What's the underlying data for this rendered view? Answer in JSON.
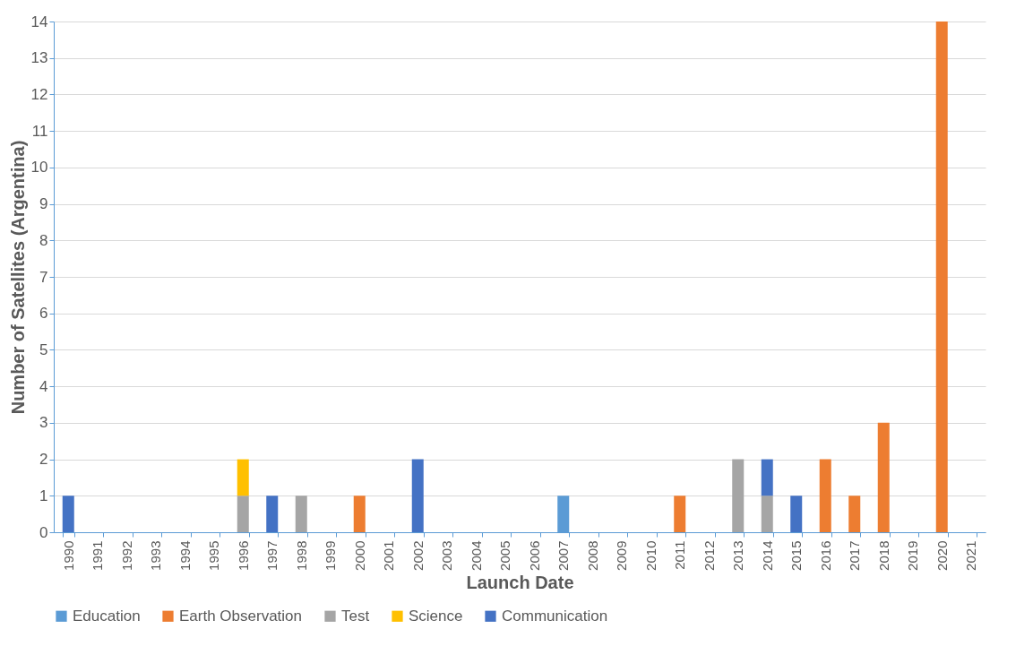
{
  "chart_data": {
    "type": "bar",
    "stacked": true,
    "xlabel": "Launch Date",
    "ylabel": "Number of Satellites (Argentina)",
    "categories": [
      "1990",
      "1991",
      "1992",
      "1993",
      "1994",
      "1995",
      "1996",
      "1997",
      "1998",
      "1999",
      "2000",
      "2001",
      "2002",
      "2003",
      "2004",
      "2005",
      "2006",
      "2007",
      "2008",
      "2009",
      "2010",
      "2011",
      "2012",
      "2013",
      "2014",
      "2015",
      "2016",
      "2017",
      "2018",
      "2019",
      "2020",
      "2021"
    ],
    "series": [
      {
        "name": "Education",
        "color": "#5b9bd5",
        "values": [
          null,
          null,
          null,
          null,
          null,
          null,
          null,
          null,
          null,
          null,
          null,
          null,
          null,
          null,
          null,
          null,
          null,
          1,
          null,
          null,
          null,
          null,
          null,
          null,
          null,
          null,
          null,
          null,
          null,
          null,
          null,
          null
        ]
      },
      {
        "name": "Earth Observation",
        "color": "#ed7d31",
        "values": [
          null,
          null,
          null,
          null,
          null,
          null,
          null,
          null,
          null,
          null,
          1,
          null,
          null,
          null,
          null,
          null,
          null,
          null,
          null,
          null,
          null,
          1,
          null,
          null,
          null,
          null,
          2,
          1,
          3,
          null,
          14,
          null
        ]
      },
      {
        "name": "Test",
        "color": "#a5a5a5",
        "values": [
          null,
          null,
          null,
          null,
          null,
          null,
          1,
          null,
          1,
          null,
          null,
          null,
          null,
          null,
          null,
          null,
          null,
          null,
          null,
          null,
          null,
          null,
          null,
          2,
          1,
          null,
          null,
          null,
          null,
          null,
          null,
          null
        ]
      },
      {
        "name": "Science",
        "color": "#ffc000",
        "values": [
          null,
          null,
          null,
          null,
          null,
          null,
          1,
          null,
          null,
          null,
          null,
          null,
          null,
          null,
          null,
          null,
          null,
          null,
          null,
          null,
          null,
          null,
          null,
          null,
          null,
          null,
          null,
          null,
          null,
          null,
          null,
          null
        ]
      },
      {
        "name": "Communication",
        "color": "#4472c4",
        "values": [
          1,
          null,
          null,
          null,
          null,
          null,
          null,
          1,
          null,
          null,
          null,
          null,
          2,
          null,
          null,
          null,
          null,
          null,
          null,
          null,
          null,
          null,
          null,
          null,
          1,
          1,
          null,
          null,
          null,
          null,
          null,
          null
        ]
      }
    ],
    "ylim": [
      0,
      14
    ],
    "yticks": [
      0,
      1,
      2,
      3,
      4,
      5,
      6,
      7,
      8,
      9,
      10,
      11,
      12,
      13,
      14
    ],
    "grid": "y",
    "legend": "bottom"
  }
}
